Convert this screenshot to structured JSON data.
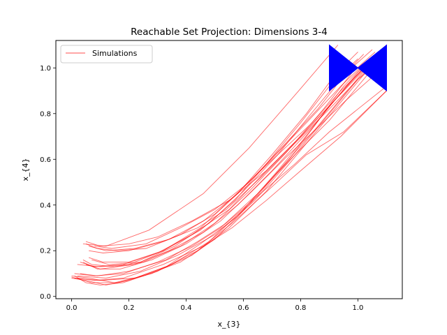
{
  "chart_data": {
    "type": "line",
    "title": "Reachable Set Projection: Dimensions 3-4",
    "xlabel": "x_{3}",
    "ylabel": "x_{4}",
    "xlim": [
      -0.055,
      1.155
    ],
    "ylim": [
      -0.01,
      1.12
    ],
    "xticks": [
      0.0,
      0.2,
      0.4,
      0.6,
      0.8,
      1.0
    ],
    "xtick_labels": [
      "0.0",
      "0.2",
      "0.4",
      "0.6",
      "0.8",
      "1.0"
    ],
    "yticks": [
      0.0,
      0.2,
      0.4,
      0.6,
      0.8,
      1.0
    ],
    "ytick_labels": [
      "0.0",
      "0.2",
      "0.4",
      "0.6",
      "0.8",
      "1.0"
    ],
    "grid": false,
    "legend": {
      "placement": "top-left",
      "entries": [
        {
          "label": "Simulations",
          "color": "#ff0000"
        }
      ]
    },
    "series_color": "#ff0000",
    "reach_set_color": "#0000ff",
    "reach_set": [
      [
        [
          0.9,
          1.1
        ],
        [
          1.0,
          1.0
        ],
        [
          1.1,
          1.1
        ],
        [
          1.1,
          0.9
        ],
        [
          1.0,
          1.0
        ],
        [
          0.9,
          0.9
        ]
      ]
    ],
    "series": [
      {
        "values": [
          [
            0.0,
            0.08
          ],
          [
            0.05,
            0.07
          ],
          [
            0.12,
            0.05
          ],
          [
            0.2,
            0.07
          ],
          [
            0.33,
            0.13
          ],
          [
            0.45,
            0.23
          ],
          [
            0.58,
            0.35
          ],
          [
            0.72,
            0.55
          ],
          [
            0.85,
            0.75
          ],
          [
            0.95,
            0.92
          ],
          [
            1.05,
            1.05
          ]
        ]
      },
      {
        "values": [
          [
            0.0,
            0.09
          ],
          [
            0.06,
            0.08
          ],
          [
            0.15,
            0.06
          ],
          [
            0.25,
            0.09
          ],
          [
            0.38,
            0.15
          ],
          [
            0.5,
            0.25
          ],
          [
            0.62,
            0.4
          ],
          [
            0.76,
            0.6
          ],
          [
            0.88,
            0.8
          ],
          [
            1.0,
            0.98
          ],
          [
            1.1,
            1.1
          ]
        ]
      },
      {
        "values": [
          [
            0.0,
            0.085
          ],
          [
            0.07,
            0.06
          ],
          [
            0.16,
            0.06
          ],
          [
            0.28,
            0.1
          ],
          [
            0.42,
            0.18
          ],
          [
            0.55,
            0.3
          ],
          [
            0.68,
            0.46
          ],
          [
            0.8,
            0.64
          ],
          [
            0.92,
            0.82
          ],
          [
            1.02,
            0.97
          ],
          [
            1.08,
            1.06
          ]
        ]
      },
      {
        "values": [
          [
            0.01,
            0.08
          ],
          [
            0.1,
            0.07
          ],
          [
            0.22,
            0.08
          ],
          [
            0.35,
            0.14
          ],
          [
            0.48,
            0.24
          ],
          [
            0.6,
            0.38
          ],
          [
            0.73,
            0.56
          ],
          [
            0.85,
            0.73
          ],
          [
            0.95,
            0.88
          ],
          [
            1.03,
            1.0
          ]
        ]
      },
      {
        "values": [
          [
            0.02,
            0.09
          ],
          [
            0.12,
            0.08
          ],
          [
            0.24,
            0.11
          ],
          [
            0.37,
            0.18
          ],
          [
            0.5,
            0.27
          ],
          [
            0.64,
            0.42
          ],
          [
            0.78,
            0.62
          ],
          [
            0.9,
            0.8
          ],
          [
            1.0,
            0.95
          ],
          [
            1.1,
            1.08
          ]
        ]
      },
      {
        "values": [
          [
            0.01,
            0.1
          ],
          [
            0.08,
            0.09
          ],
          [
            0.18,
            0.1
          ],
          [
            0.3,
            0.15
          ],
          [
            0.42,
            0.22
          ],
          [
            0.52,
            0.3
          ],
          [
            0.65,
            0.45
          ],
          [
            0.78,
            0.62
          ],
          [
            0.9,
            0.77
          ],
          [
            1.0,
            0.92
          ],
          [
            1.08,
            1.04
          ]
        ]
      },
      {
        "values": [
          [
            0.04,
            0.16
          ],
          [
            0.07,
            0.14
          ],
          [
            0.15,
            0.13
          ],
          [
            0.25,
            0.15
          ],
          [
            0.38,
            0.22
          ],
          [
            0.5,
            0.32
          ],
          [
            0.62,
            0.46
          ],
          [
            0.75,
            0.63
          ],
          [
            0.88,
            0.82
          ],
          [
            0.98,
            0.98
          ],
          [
            1.06,
            1.07
          ]
        ]
      },
      {
        "values": [
          [
            0.03,
            0.15
          ],
          [
            0.08,
            0.13
          ],
          [
            0.18,
            0.14
          ],
          [
            0.3,
            0.19
          ],
          [
            0.42,
            0.27
          ],
          [
            0.55,
            0.38
          ],
          [
            0.68,
            0.55
          ],
          [
            0.8,
            0.7
          ],
          [
            0.92,
            0.86
          ],
          [
            1.02,
            0.99
          ],
          [
            1.1,
            1.1
          ]
        ]
      },
      {
        "values": [
          [
            0.05,
            0.14
          ],
          [
            0.1,
            0.12
          ],
          [
            0.22,
            0.14
          ],
          [
            0.34,
            0.2
          ],
          [
            0.46,
            0.28
          ],
          [
            0.58,
            0.4
          ],
          [
            0.7,
            0.55
          ],
          [
            0.84,
            0.74
          ],
          [
            0.96,
            0.92
          ],
          [
            1.04,
            1.02
          ]
        ]
      },
      {
        "values": [
          [
            0.06,
            0.17
          ],
          [
            0.11,
            0.15
          ],
          [
            0.2,
            0.15
          ],
          [
            0.32,
            0.2
          ],
          [
            0.45,
            0.29
          ],
          [
            0.57,
            0.42
          ],
          [
            0.68,
            0.58
          ],
          [
            0.8,
            0.76
          ],
          [
            0.9,
            0.92
          ],
          [
            1.0,
            1.04
          ]
        ]
      },
      {
        "values": [
          [
            0.04,
            0.15
          ],
          [
            0.09,
            0.12
          ],
          [
            0.17,
            0.12
          ],
          [
            0.28,
            0.16
          ],
          [
            0.4,
            0.23
          ],
          [
            0.52,
            0.33
          ],
          [
            0.63,
            0.46
          ],
          [
            0.75,
            0.61
          ],
          [
            0.86,
            0.74
          ],
          [
            0.96,
            0.86
          ],
          [
            1.05,
            0.96
          ]
        ]
      },
      {
        "values": [
          [
            0.07,
            0.16
          ],
          [
            0.13,
            0.14
          ],
          [
            0.24,
            0.15
          ],
          [
            0.36,
            0.22
          ],
          [
            0.48,
            0.32
          ],
          [
            0.6,
            0.46
          ],
          [
            0.72,
            0.62
          ],
          [
            0.83,
            0.79
          ],
          [
            0.93,
            0.94
          ],
          [
            1.02,
            1.06
          ]
        ]
      },
      {
        "values": [
          [
            0.05,
            0.23
          ],
          [
            0.09,
            0.21
          ],
          [
            0.16,
            0.2
          ],
          [
            0.26,
            0.21
          ],
          [
            0.38,
            0.27
          ],
          [
            0.5,
            0.36
          ],
          [
            0.62,
            0.5
          ],
          [
            0.74,
            0.66
          ],
          [
            0.86,
            0.82
          ],
          [
            0.96,
            0.98
          ],
          [
            1.05,
            1.08
          ]
        ]
      },
      {
        "values": [
          [
            0.06,
            0.22
          ],
          [
            0.12,
            0.2
          ],
          [
            0.22,
            0.21
          ],
          [
            0.34,
            0.25
          ],
          [
            0.46,
            0.33
          ],
          [
            0.57,
            0.44
          ],
          [
            0.69,
            0.59
          ],
          [
            0.82,
            0.76
          ],
          [
            0.94,
            0.92
          ],
          [
            1.04,
            1.04
          ]
        ]
      },
      {
        "values": [
          [
            0.05,
            0.24
          ],
          [
            0.1,
            0.22
          ],
          [
            0.2,
            0.23
          ],
          [
            0.3,
            0.26
          ],
          [
            0.42,
            0.33
          ],
          [
            0.55,
            0.42
          ],
          [
            0.68,
            0.55
          ],
          [
            0.8,
            0.7
          ],
          [
            0.92,
            0.86
          ],
          [
            1.02,
            1.0
          ],
          [
            1.1,
            1.1
          ]
        ]
      },
      {
        "values": [
          [
            0.08,
            0.22
          ],
          [
            0.14,
            0.21
          ],
          [
            0.26,
            0.23
          ],
          [
            0.38,
            0.3
          ],
          [
            0.5,
            0.38
          ],
          [
            0.6,
            0.48
          ],
          [
            0.72,
            0.62
          ],
          [
            0.84,
            0.76
          ],
          [
            0.94,
            0.9
          ],
          [
            1.03,
            1.01
          ]
        ]
      },
      {
        "values": [
          [
            0.06,
            0.2
          ],
          [
            0.11,
            0.19
          ],
          [
            0.2,
            0.2
          ],
          [
            0.32,
            0.24
          ],
          [
            0.44,
            0.3
          ],
          [
            0.54,
            0.38
          ],
          [
            0.66,
            0.52
          ],
          [
            0.78,
            0.67
          ],
          [
            0.9,
            0.82
          ],
          [
            1.0,
            0.95
          ],
          [
            1.08,
            1.03
          ]
        ]
      },
      {
        "values": [
          [
            0.04,
            0.23
          ],
          [
            0.12,
            0.22
          ],
          [
            0.27,
            0.29
          ],
          [
            0.46,
            0.45
          ],
          [
            0.62,
            0.65
          ],
          [
            0.8,
            0.91
          ],
          [
            0.93,
            1.1
          ]
        ]
      },
      {
        "values": [
          [
            0.02,
            0.14
          ],
          [
            0.1,
            0.13
          ],
          [
            0.2,
            0.14
          ],
          [
            0.32,
            0.2
          ],
          [
            0.45,
            0.3
          ],
          [
            0.58,
            0.45
          ],
          [
            0.7,
            0.62
          ],
          [
            0.82,
            0.8
          ],
          [
            0.92,
            0.97
          ],
          [
            1.0,
            1.07
          ]
        ]
      },
      {
        "values": [
          [
            0.01,
            0.09
          ],
          [
            0.05,
            0.06
          ],
          [
            0.1,
            0.05
          ],
          [
            0.18,
            0.06
          ],
          [
            0.3,
            0.11
          ],
          [
            0.44,
            0.2
          ],
          [
            0.56,
            0.32
          ],
          [
            0.7,
            0.48
          ],
          [
            0.82,
            0.62
          ],
          [
            0.95,
            0.72
          ],
          [
            1.1,
            0.9
          ]
        ]
      },
      {
        "values": [
          [
            0.02,
            0.08
          ],
          [
            0.08,
            0.07
          ],
          [
            0.18,
            0.08
          ],
          [
            0.32,
            0.14
          ],
          [
            0.46,
            0.22
          ],
          [
            0.56,
            0.3
          ],
          [
            0.68,
            0.42
          ],
          [
            0.8,
            0.55
          ],
          [
            0.94,
            0.7
          ],
          [
            1.1,
            0.9
          ]
        ]
      },
      {
        "values": [
          [
            0.03,
            0.1
          ],
          [
            0.09,
            0.09
          ],
          [
            0.2,
            0.11
          ],
          [
            0.33,
            0.16
          ],
          [
            0.44,
            0.24
          ],
          [
            0.54,
            0.32
          ],
          [
            0.66,
            0.45
          ],
          [
            0.78,
            0.58
          ],
          [
            0.9,
            0.72
          ],
          [
            1.0,
            0.82
          ],
          [
            1.1,
            0.92
          ]
        ]
      }
    ]
  }
}
